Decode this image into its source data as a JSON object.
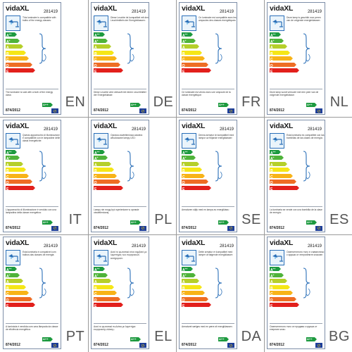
{
  "brand": "vidaXL",
  "model": "281419",
  "regulation": "874/2012",
  "class_badge": "A++",
  "colors": {
    "frame": "#7d8ea8",
    "grid": "#9a9a9a",
    "lamp_blue": "#2a6fb8",
    "eu_blue": "#1f3f99",
    "eu_star": "#ffd400"
  },
  "energy_classes": [
    {
      "letter": "A",
      "sup": "++",
      "color": "#1d9a3f"
    },
    {
      "letter": "A",
      "sup": "+",
      "color": "#4fb33a"
    },
    {
      "letter": "A",
      "sup": "",
      "color": "#b5cf2a"
    },
    {
      "letter": "B",
      "sup": "",
      "color": "#f5e617"
    },
    {
      "letter": "C",
      "sup": "",
      "color": "#f8b318"
    },
    {
      "letter": "D",
      "sup": "",
      "color": "#ee6d24"
    },
    {
      "letter": "E",
      "sup": "",
      "color": "#e2201c"
    }
  ],
  "labels": [
    {
      "lang": "EN",
      "top": "This luminaire is compatible with bulbs of the energy classes:",
      "bottom": "The luminaire is sold with a bulb of the energy class:"
    },
    {
      "lang": "DE",
      "top": "Diese Leuchte ist kompatibel mit den Leuchtmitteln der Energieklassen:",
      "bottom": "Diese Leuchte wird verkauft mit einem Leuchtmittel der Energieklasse:"
    },
    {
      "lang": "FR",
      "top": "Ce luminaire est compatible avec les ampoules des classes énergétiques:",
      "bottom": "Ce luminaire est vendu avec une ampoule de la classe énergétique:"
    },
    {
      "lang": "NL",
      "top": "Deze lamp is geschikt voor peren van de volgende energieklassen:",
      "bottom": "Deze lamp wordt verkocht met een peer van de volgende energieklasse:"
    },
    {
      "lang": "IT",
      "top": "Questo apparecchio di illuminazione è compatibile con le lampadine delle classi energetiche:",
      "bottom": "L'apparecchio di illuminazione è venduto con una lampadina della classe energetica:"
    },
    {
      "lang": "PL",
      "top": "Oprawa oświetleniowa zawiera wbudowane lampy LED:",
      "bottom": "Lampy nie mogą być wymieniane w oprawie oświetleniowej."
    },
    {
      "lang": "SE",
      "top": "Denna armatur är kompatibel med lampor av följande energiklasser:",
      "bottom": "Armaturen säljs med en lampa av energiklass:"
    },
    {
      "lang": "ES",
      "top": "Esta luminaria es compatible con las bombillas de las clases de energía:",
      "bottom": "La luminaria se vende con una bombilla de la clase de energía:"
    },
    {
      "lang": "PT",
      "top": "Esta luminária é compatível com bolbos das classes de energia:",
      "bottom": "A luminária é vendida com uma lâmpada da classe de eficiência energética:"
    },
    {
      "lang": "EL",
      "top": "Αυτό το φωτιστικό είναι συμβατό με λαμπτήρες των ενεργειακών κατηγοριών:",
      "bottom": "Αυτό το φωτιστικό πωλείται με λαμπτήρα ενεργειακής κλάσης:"
    },
    {
      "lang": "DA",
      "top": "Dette armatur er kompatibel med lamper af følgende energiklasser:",
      "bottom": "Armaturet sælges med en pære af energiklassen:"
    },
    {
      "lang": "BG",
      "top": "Осветителното тяло е съвместимо с крушки от енергийните класове:",
      "bottom": "Осветителното тяло се продава с крушка от енергиен клас:"
    }
  ]
}
